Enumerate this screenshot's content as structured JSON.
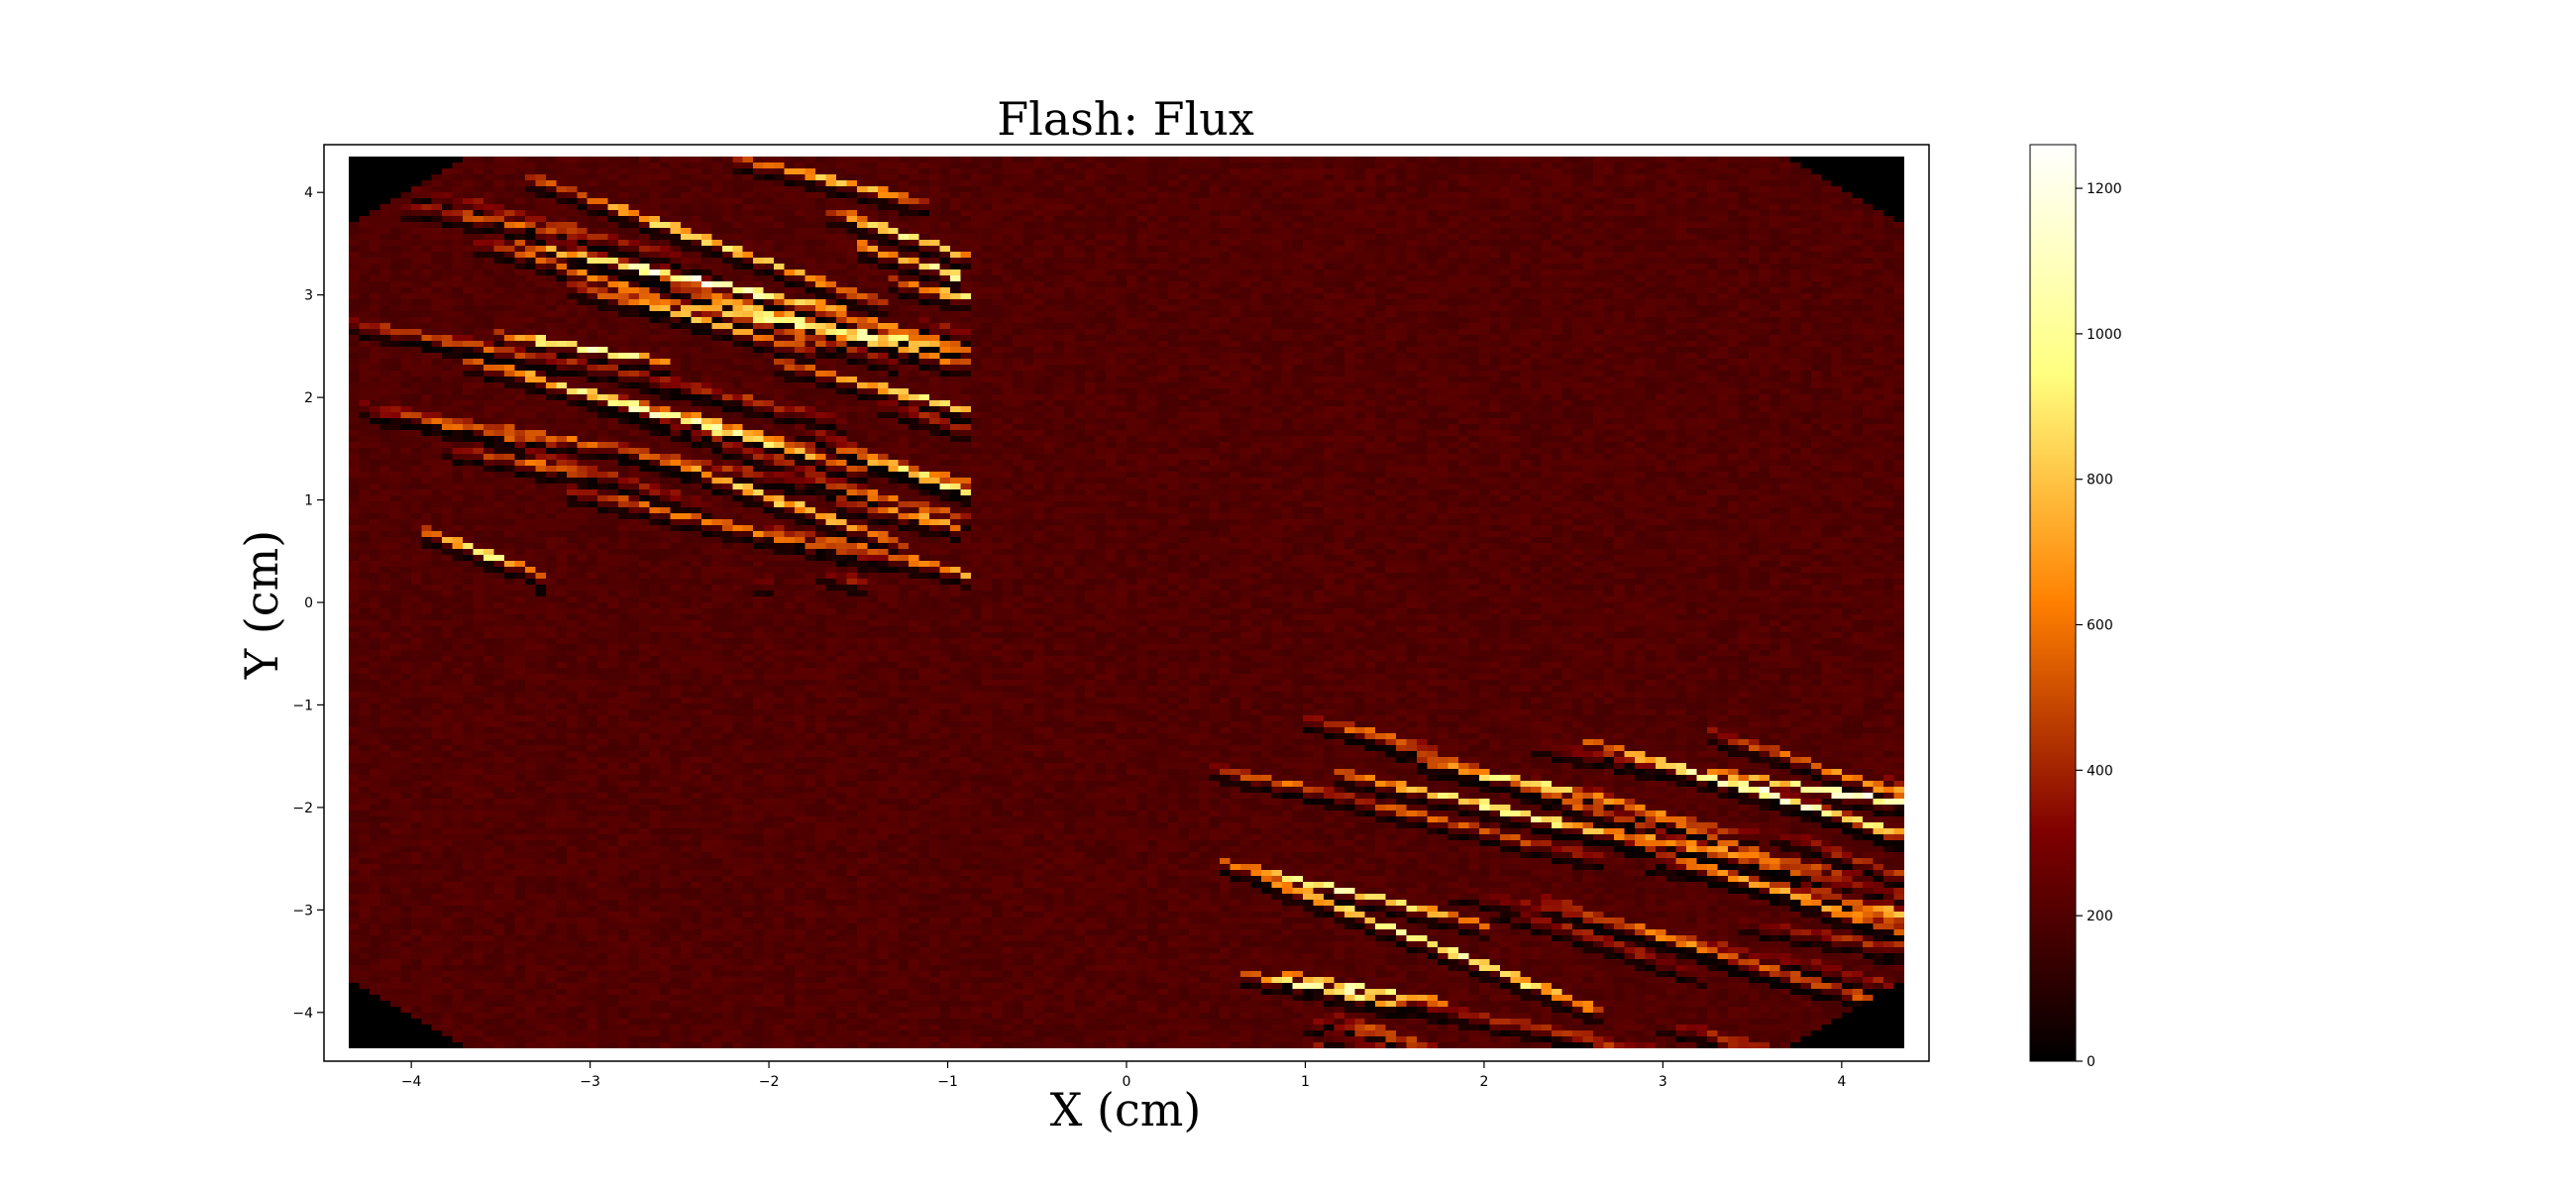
{
  "chart_data": {
    "type": "heatmap",
    "title": "Flash: Flux",
    "xlabel": "X (cm)",
    "ylabel": "Y (cm)",
    "xlim": [
      -4.35,
      4.35
    ],
    "ylim": [
      -4.35,
      4.35
    ],
    "xticks": [
      "−4",
      "−3",
      "−2",
      "−1",
      "0",
      "1",
      "2",
      "3",
      "4"
    ],
    "xtick_values": [
      -4,
      -3,
      -2,
      -1,
      0,
      1,
      2,
      3,
      4
    ],
    "yticks": [
      "4",
      "3",
      "2",
      "1",
      "0",
      "−1",
      "−2",
      "−3",
      "−4"
    ],
    "ytick_values": [
      4,
      3,
      2,
      1,
      0,
      -1,
      -2,
      -3,
      -4
    ],
    "colorbar": {
      "colormap": "afmhot",
      "range": [
        0,
        1260
      ],
      "ticks": [
        "1200",
        "1000",
        "800",
        "600",
        "400",
        "200",
        "0"
      ],
      "tick_values": [
        1200,
        1000,
        800,
        600,
        400,
        200,
        0
      ]
    },
    "grid_shape": [
      150,
      150
    ],
    "background_level": 200,
    "flux_regions": [
      {
        "region": "upper-left filament structure",
        "x_range": [
          -4.35,
          -0.9
        ],
        "y_range": [
          0.2,
          4.35
        ],
        "peak_flux": 1250
      },
      {
        "region": "lower-right filament structure",
        "x_range": [
          0.4,
          4.35
        ],
        "y_range": [
          -4.35,
          -1.1
        ],
        "peak_flux": 1250
      }
    ],
    "zero_flux_corners": [
      "top-left",
      "top-right",
      "bottom-left",
      "bottom-right"
    ]
  }
}
